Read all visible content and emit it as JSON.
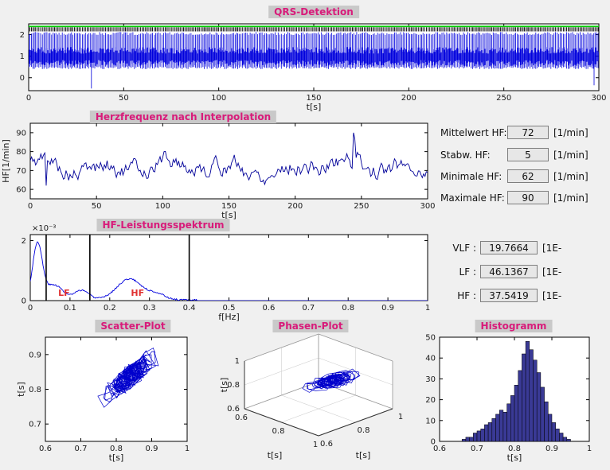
{
  "colors": {
    "accent": "#d81b7a",
    "figure_bg": "#f0f0f0",
    "title_bg": "#c9c9c9",
    "band_label": "#e03030"
  },
  "stats": [
    {
      "label": "Mittelwert HF:",
      "value": "72",
      "unit": "[1/min]"
    },
    {
      "label": "Stabw. HF:",
      "value": "5",
      "unit": "[1/min]"
    },
    {
      "label": "Minimale HF:",
      "value": "62",
      "unit": "[1/min]"
    },
    {
      "label": "Maximale HF:",
      "value": "90",
      "unit": "[1/min]"
    }
  ],
  "spectrum_stats": [
    {
      "label": "VLF :",
      "value": "19.7664",
      "unit": "[1E-"
    },
    {
      "label": "LF :",
      "value": "46.1367",
      "unit": "[1E-"
    },
    {
      "label": "HF :",
      "value": "37.5419",
      "unit": "[1E-"
    }
  ],
  "chart_data": [
    {
      "id": "qrs",
      "type": "line",
      "title": "QRS-Detektion",
      "xlabel": "t[s]",
      "xlim": [
        0,
        300
      ],
      "ylim": [
        -0.6,
        2.5
      ],
      "xticks": [
        "0",
        "50",
        "100",
        "150",
        "200",
        "250",
        "300"
      ],
      "yticks": [
        "0",
        "1",
        "2"
      ],
      "signal_color": "#0000dd",
      "marker_color": "#000000",
      "threshold_color": "#00cc00",
      "threshold_y": 2.38,
      "heart_rate_bpm": 72
    },
    {
      "id": "hr",
      "type": "line",
      "title": "Herzfrequenz nach Interpolation",
      "xlabel": "t[s]",
      "ylabel": "HF[1/min]",
      "xlim": [
        0,
        300
      ],
      "ylim": [
        55,
        95
      ],
      "xticks": [
        "0",
        "50",
        "100",
        "150",
        "200",
        "250",
        "300"
      ],
      "yticks": [
        "60",
        "70",
        "80",
        "90"
      ],
      "color": "#000099",
      "mean": 72,
      "std": 5,
      "min": 62,
      "max": 90
    },
    {
      "id": "spectrum",
      "type": "line",
      "title": "HF-Leistungsspektrum",
      "xlabel": "f[Hz]",
      "xlim": [
        0,
        1
      ],
      "ylim": [
        0,
        2.2
      ],
      "y_unit_scale": "1e-3",
      "y_exponent": "×10⁻³",
      "xticks": [
        "0",
        "0.1",
        "0.2",
        "0.3",
        "0.4",
        "0.5",
        "0.6",
        "0.7",
        "0.8",
        "0.9",
        "1"
      ],
      "yticks": [
        "0",
        "2"
      ],
      "color": "#0000dd",
      "band_lines": [
        0.04,
        0.15,
        0.4
      ],
      "band_labels": [
        {
          "text": "LF",
          "f": 0.085
        },
        {
          "text": "HF",
          "f": 0.27
        }
      ],
      "peaks": [
        {
          "f": 0.018,
          "h": 1.85,
          "w": 0.012
        },
        {
          "f": 0.06,
          "h": 0.5,
          "w": 0.022
        },
        {
          "f": 0.13,
          "h": 0.32,
          "w": 0.018
        },
        {
          "f": 0.25,
          "h": 0.7,
          "w": 0.032
        },
        {
          "f": 0.32,
          "h": 0.18,
          "w": 0.02
        }
      ],
      "vlf_power": 19.7664,
      "lf_power": 46.1367,
      "hf_power": 37.5419
    },
    {
      "id": "scatter",
      "type": "scatter",
      "title": "Scatter-Plot",
      "xlabel": "t[s]",
      "ylabel": "t[s]",
      "xlim": [
        0.6,
        1
      ],
      "ylim": [
        0.65,
        0.95
      ],
      "xticks": [
        "0.6",
        "0.7",
        "0.8",
        "0.9",
        "1"
      ],
      "yticks": [
        "0.7",
        "0.8",
        "0.9"
      ],
      "color": "#0000cc",
      "rr_mean_s": 0.83
    },
    {
      "id": "phase",
      "type": "line3d",
      "title": "Phasen-Plot",
      "xlabel": "t[s]",
      "ylabel": "t[s]",
      "zlabel": "t[s]",
      "lim": [
        0.6,
        1
      ],
      "ticks": [
        "0.6",
        "0.8",
        "1"
      ],
      "color": "#0000cc"
    },
    {
      "id": "histogram",
      "type": "bar",
      "title": "Histogramm",
      "xlabel": "t[s]",
      "xlim": [
        0.6,
        1
      ],
      "ylim": [
        0,
        50
      ],
      "xticks": [
        "0.6",
        "0.7",
        "0.8",
        "0.9",
        "1"
      ],
      "yticks": [
        "0",
        "10",
        "20",
        "30",
        "40",
        "50"
      ],
      "fill": "#3a3a96",
      "bin_start": 0.66,
      "bin_width": 0.01,
      "counts": [
        1,
        2,
        2,
        4,
        5,
        6,
        8,
        9,
        11,
        13,
        15,
        14,
        18,
        22,
        27,
        34,
        42,
        48,
        44,
        39,
        33,
        26,
        19,
        13,
        9,
        6,
        4,
        2,
        1
      ]
    }
  ]
}
